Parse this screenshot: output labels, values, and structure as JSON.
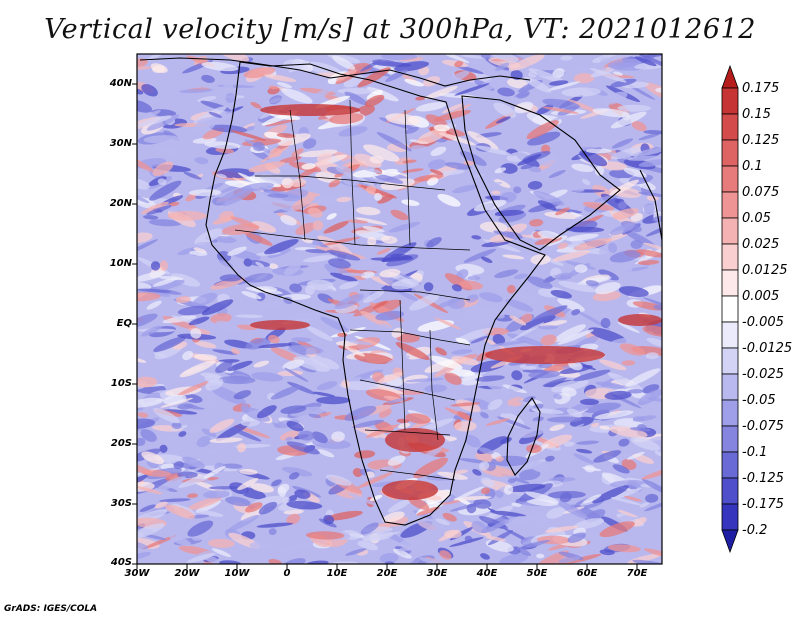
{
  "title": "Vertical velocity [m/s] at 300hPa, VT: 2021012612",
  "credit": "GrADS: IGES/COLA",
  "lat_labels": [
    "40N",
    "30N",
    "20N",
    "10N",
    "EQ",
    "10S",
    "20S",
    "30S",
    "40S"
  ],
  "lon_labels": [
    "30W",
    "20W",
    "10W",
    "0",
    "10E",
    "20E",
    "30E",
    "40E",
    "50E",
    "60E",
    "70E"
  ],
  "colorbar": {
    "labels": [
      "0.175",
      "0.15",
      "0.125",
      "0.1",
      "0.075",
      "0.05",
      "0.025",
      "0.0125",
      "0.005",
      "-0.005",
      "-0.0125",
      "-0.025",
      "-0.05",
      "-0.075",
      "-0.1",
      "-0.125",
      "-0.175",
      "-0.2"
    ],
    "colors": [
      "#b51c1c",
      "#c63434",
      "#d44b4b",
      "#de6363",
      "#e77a7a",
      "#ef9494",
      "#f4b2b2",
      "#f9cfcf",
      "#fde9e9",
      "#ffffff",
      "#ebebfb",
      "#d3d3f6",
      "#b9b9f0",
      "#9f9fe9",
      "#8585e0",
      "#6a6ad6",
      "#4f4fcb",
      "#3535bd",
      "#1f1fa6"
    ]
  },
  "map": {
    "lon_range": [
      -30,
      75
    ],
    "lat_range": [
      -40,
      45
    ],
    "colors": {
      "ocean_base": "#b8b8ef",
      "land_base": "#e9c9d6",
      "border": "#000000"
    }
  }
}
